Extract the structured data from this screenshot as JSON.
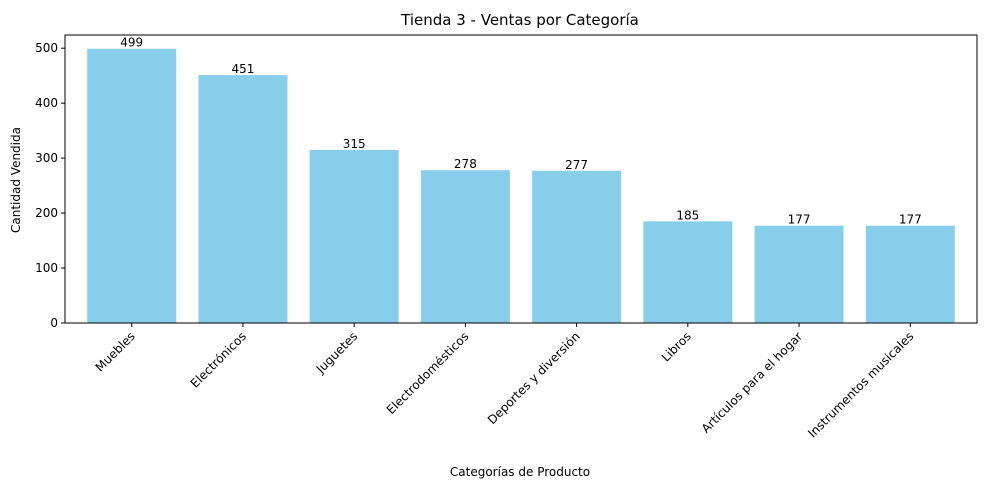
{
  "chart_data": {
    "type": "bar",
    "title": "Tienda 3 - Ventas por Categoría",
    "xlabel": "Categorías de Producto",
    "ylabel": "Cantidad Vendida",
    "categories": [
      "Muebles",
      "Electrónicos",
      "Juguetes",
      "Electrodomésticos",
      "Deportes y diversión",
      "Libros",
      "Artículos para el hogar",
      "Instrumentos musicales"
    ],
    "values": [
      499,
      451,
      315,
      278,
      277,
      185,
      177,
      177
    ],
    "data_labels": [
      "499",
      "451",
      "315",
      "278",
      "277",
      "185",
      "177",
      "177"
    ],
    "yticks": [
      0,
      100,
      200,
      300,
      400,
      500
    ],
    "ytick_labels": [
      "0",
      "100",
      "200",
      "300",
      "400",
      "500"
    ],
    "ylim": [
      0,
      524
    ],
    "grid": false,
    "bar_color": "#87CEEB"
  }
}
